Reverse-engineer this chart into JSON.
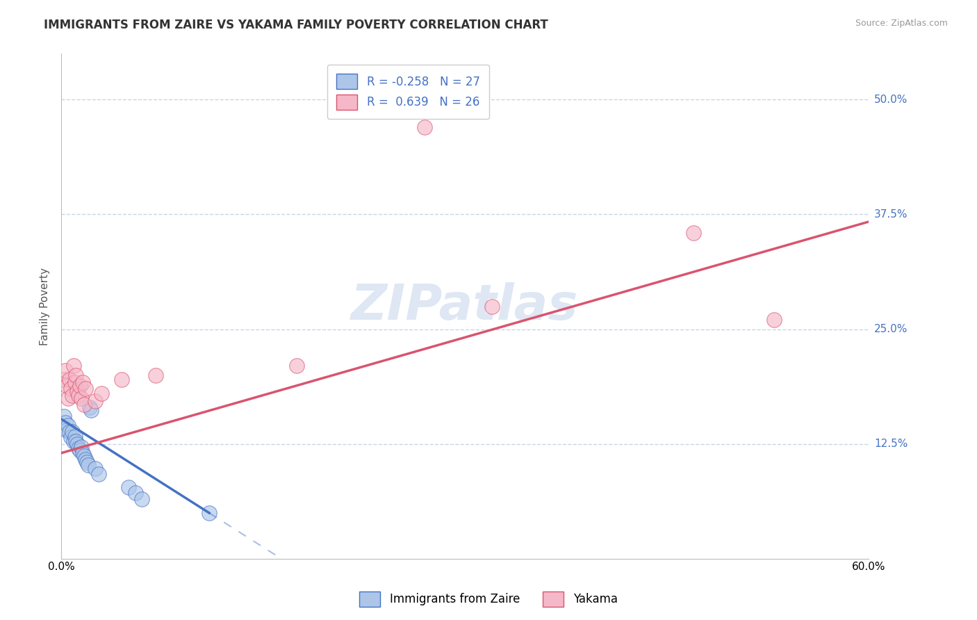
{
  "title": "IMMIGRANTS FROM ZAIRE VS YAKAMA FAMILY POVERTY CORRELATION CHART",
  "source": "Source: ZipAtlas.com",
  "ylabel": "Family Poverty",
  "watermark": "ZIPatlas",
  "xlim": [
    0.0,
    0.6
  ],
  "ylim": [
    0.0,
    0.55
  ],
  "ytick_positions": [
    0.125,
    0.25,
    0.375,
    0.5
  ],
  "ytick_labels": [
    "12.5%",
    "25.0%",
    "37.5%",
    "50.0%"
  ],
  "legend_labels": [
    "Immigrants from Zaire",
    "Yakama"
  ],
  "r_blue": -0.258,
  "n_blue": 27,
  "r_pink": 0.639,
  "n_pink": 26,
  "blue_color": "#adc6e8",
  "pink_color": "#f5b8c8",
  "blue_line_color": "#4472c4",
  "pink_line_color": "#d9546e",
  "blue_scatter": [
    [
      0.002,
      0.155
    ],
    [
      0.003,
      0.148
    ],
    [
      0.004,
      0.14
    ],
    [
      0.005,
      0.145
    ],
    [
      0.006,
      0.138
    ],
    [
      0.007,
      0.132
    ],
    [
      0.008,
      0.138
    ],
    [
      0.009,
      0.128
    ],
    [
      0.01,
      0.133
    ],
    [
      0.011,
      0.128
    ],
    [
      0.012,
      0.125
    ],
    [
      0.013,
      0.12
    ],
    [
      0.014,
      0.118
    ],
    [
      0.015,
      0.122
    ],
    [
      0.016,
      0.115
    ],
    [
      0.017,
      0.112
    ],
    [
      0.018,
      0.108
    ],
    [
      0.019,
      0.105
    ],
    [
      0.02,
      0.102
    ],
    [
      0.021,
      0.165
    ],
    [
      0.022,
      0.162
    ],
    [
      0.025,
      0.098
    ],
    [
      0.028,
      0.092
    ],
    [
      0.05,
      0.078
    ],
    [
      0.055,
      0.072
    ],
    [
      0.06,
      0.065
    ],
    [
      0.11,
      0.05
    ]
  ],
  "pink_scatter": [
    [
      0.002,
      0.195
    ],
    [
      0.003,
      0.205
    ],
    [
      0.004,
      0.188
    ],
    [
      0.005,
      0.175
    ],
    [
      0.006,
      0.195
    ],
    [
      0.007,
      0.185
    ],
    [
      0.008,
      0.178
    ],
    [
      0.009,
      0.21
    ],
    [
      0.01,
      0.192
    ],
    [
      0.011,
      0.2
    ],
    [
      0.012,
      0.182
    ],
    [
      0.013,
      0.178
    ],
    [
      0.014,
      0.188
    ],
    [
      0.015,
      0.175
    ],
    [
      0.016,
      0.192
    ],
    [
      0.017,
      0.168
    ],
    [
      0.018,
      0.185
    ],
    [
      0.025,
      0.172
    ],
    [
      0.03,
      0.18
    ],
    [
      0.045,
      0.195
    ],
    [
      0.07,
      0.2
    ],
    [
      0.175,
      0.21
    ],
    [
      0.32,
      0.275
    ],
    [
      0.47,
      0.355
    ],
    [
      0.53,
      0.26
    ],
    [
      0.27,
      0.47
    ]
  ],
  "background_color": "#ffffff",
  "grid_color": "#c8d4e8",
  "title_fontsize": 12,
  "axis_label_fontsize": 11,
  "tick_fontsize": 11,
  "legend_fontsize": 12,
  "watermark_fontsize": 52,
  "watermark_color": "#c8d8ec",
  "watermark_alpha": 0.6,
  "blue_line_x_solid_end": 0.11,
  "blue_line_intercept": 0.152,
  "blue_line_slope": -0.93,
  "pink_line_intercept": 0.115,
  "pink_line_slope": 0.42
}
